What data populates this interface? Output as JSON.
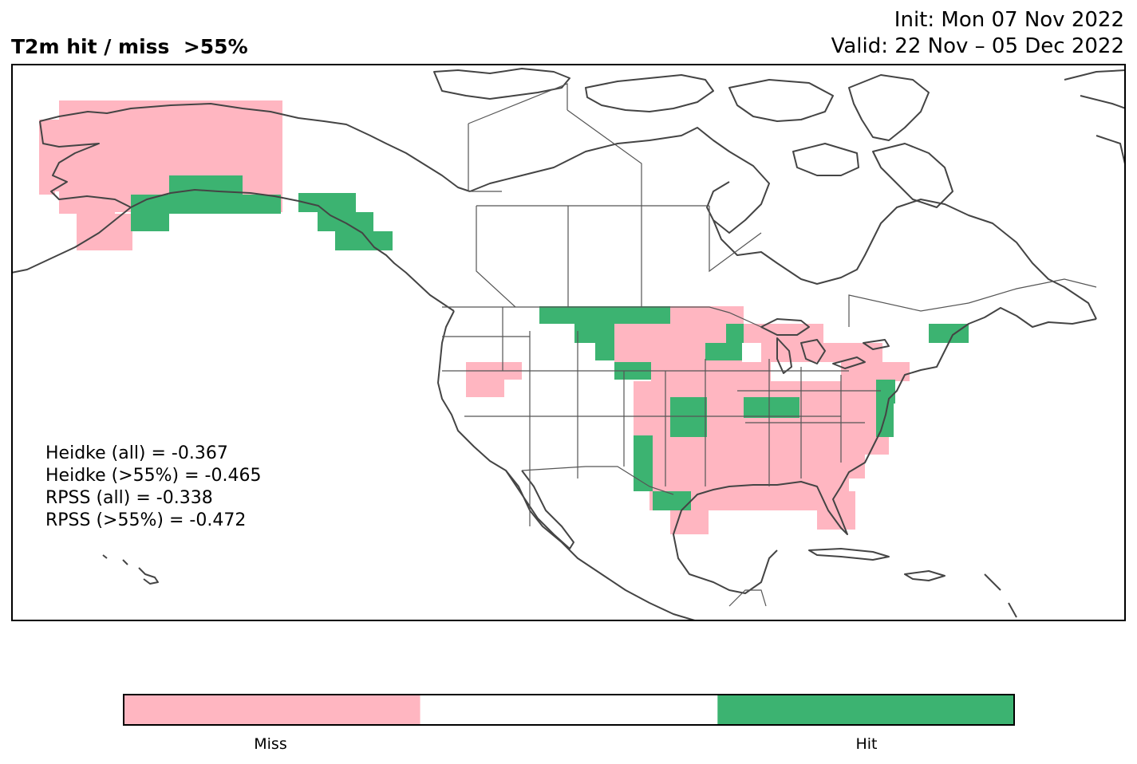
{
  "title": "T2m hit / miss  >55%",
  "init_text": "Init: Mon 07 Nov 2022",
  "valid_text": "Valid: 22 Nov – 05 Dec 2022",
  "stats": [
    "Heidke (all) = -0.367",
    "Heidke (>55%) = -0.465",
    "RPSS (all) = -0.338",
    "RPSS (>55%) = -0.472"
  ],
  "legend": {
    "miss_label": "Miss",
    "hit_label": "Hit",
    "miss_color": "#FFB6C1",
    "neutral_color": "#FFFFFF",
    "hit_color": "#3CB371"
  },
  "colors": {
    "coastline": "#444444",
    "border": "#555555"
  }
}
